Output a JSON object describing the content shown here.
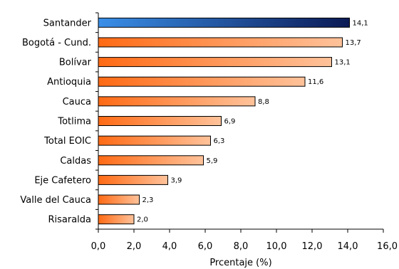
{
  "chart_data": {
    "type": "bar",
    "orientation": "horizontal",
    "categories": [
      "Santander",
      "Bogotá - Cund.",
      "Bolívar",
      "Antioquia",
      "Cauca",
      "Totlima",
      "Total EOIC",
      "Caldas",
      "Eje Cafetero",
      "Valle del Cauca",
      "Risaralda"
    ],
    "values": [
      14.1,
      13.7,
      13.1,
      11.6,
      8.8,
      6.9,
      6.3,
      5.9,
      3.9,
      2.3,
      2.0
    ],
    "value_labels": [
      "14,1",
      "13,7",
      "13,1",
      "11,6",
      "8,8",
      "6,9",
      "6,3",
      "5,9",
      "3,9",
      "2,3",
      "2,0"
    ],
    "xlim": [
      0,
      16
    ],
    "ticks": [
      0,
      2,
      4,
      6,
      8,
      10,
      12,
      14,
      16
    ],
    "tick_labels": [
      "0,0",
      "2,0",
      "4,0",
      "6,0",
      "8,0",
      "10,0",
      "12,0",
      "14,0",
      "16,0"
    ],
    "xlabel": "Prcentaje (%)",
    "ylabel": "",
    "title": "",
    "grid": false,
    "colors": {
      "highlight_light": "#3a8fe8",
      "highlight_dark": "#0b1a55",
      "bar_light": "#ffc29a",
      "bar_dark": "#ff6a14",
      "axis": "#000000"
    }
  }
}
